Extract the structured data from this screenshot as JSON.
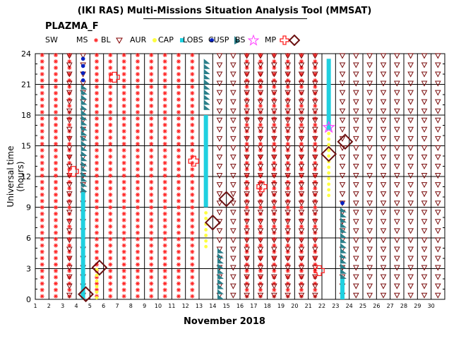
{
  "header": {
    "title": "(IKI RAS) Multi-Missions Situation Analysis Tool (MMSAT)",
    "mission": "PLAZMA_F"
  },
  "legend": [
    {
      "label": "SW",
      "symbol": "none",
      "color": "#000000"
    },
    {
      "label": "MS",
      "symbol": "asterisk",
      "color": "#ff2020"
    },
    {
      "label": "BL",
      "symbol": "tri-down",
      "color": "#800000"
    },
    {
      "label": "AUR",
      "symbol": "dot",
      "color": "#ffff40"
    },
    {
      "label": "CAP",
      "symbol": "square",
      "color": "#20d0e0"
    },
    {
      "label": "LOBS",
      "symbol": "dot",
      "color": "#0020c0"
    },
    {
      "label": "CUSP",
      "symbol": "wedge",
      "color": "#2a7f8a"
    },
    {
      "label": "BS",
      "symbol": "star",
      "color": "#ff40ff"
    },
    {
      "label": "MP",
      "symbol": "cross",
      "color": "#ff2020"
    },
    {
      "label": "",
      "symbol": "diamond",
      "color": "#6b1010"
    }
  ],
  "chart_data": {
    "type": "scatter",
    "title": "(IKI RAS) Multi-Missions Situation Analysis Tool (MMSAT)",
    "subtitle": "PLAZMA_F",
    "xlabel": "November 2018",
    "ylabel": "Universal time (hours)",
    "xlim": [
      1,
      31
    ],
    "ylim": [
      0,
      24
    ],
    "x_ticks": [
      "1",
      "2",
      "3",
      "4",
      "5",
      "6",
      "7",
      "8",
      "9",
      "10",
      "11",
      "12",
      "13",
      "14",
      "15",
      "16",
      "17",
      "18",
      "19",
      "20",
      "21",
      "22",
      "23",
      "24",
      "25",
      "26",
      "27",
      "28",
      "29",
      "30"
    ],
    "y_ticks": [
      "0",
      "3",
      "6",
      "9",
      "12",
      "15",
      "18",
      "21",
      "24"
    ],
    "grid": true,
    "regions": {
      "MS_days": [
        1.5,
        2.5,
        3.5,
        5.5,
        6.5,
        7.5,
        8.5,
        9.5,
        10.5,
        11.5,
        12.5,
        16.5,
        17.5,
        18.5,
        19.5,
        20.5,
        21.5
      ],
      "BL_days": [
        3.5,
        4.5,
        14.5,
        15.5,
        16.5,
        17.5,
        18.5,
        19.5,
        20.5,
        21.5,
        23.5,
        24.5,
        25.5,
        26.5,
        27.5,
        28.5,
        29.5,
        30.5
      ],
      "segments": [
        {
          "region": "CAP",
          "day": 4.5,
          "from": 0.0,
          "to": 10.5
        },
        {
          "region": "LOBS",
          "day": 4.5,
          "from": 21.2,
          "to": 23.6
        },
        {
          "region": "CUSP",
          "day": 4.5,
          "from": 10.5,
          "to": 21.0
        },
        {
          "region": "AUR",
          "day": 5.5,
          "from": 0.0,
          "to": 3.0
        },
        {
          "region": "CUSP",
          "day": 13.5,
          "from": 18.5,
          "to": 23.5
        },
        {
          "region": "CAP",
          "day": 13.5,
          "from": 9.0,
          "to": 18.0
        },
        {
          "region": "AUR",
          "day": 13.5,
          "from": 5.0,
          "to": 9.0
        },
        {
          "region": "CUSP",
          "day": 14.5,
          "from": 0.0,
          "to": 5.0
        },
        {
          "region": "AUR",
          "day": 22.5,
          "from": 10.0,
          "to": 16.5
        },
        {
          "region": "CAP",
          "day": 22.5,
          "from": 16.5,
          "to": 23.5
        },
        {
          "region": "CUSP",
          "day": 23.5,
          "from": 2.0,
          "to": 9.0
        },
        {
          "region": "CAP",
          "day": 23.5,
          "from": 0.0,
          "to": 2.0
        },
        {
          "region": "LOBS",
          "day": 23.5,
          "from": 9.2,
          "to": 10.0
        }
      ],
      "BS_crossings": [
        {
          "day": 22.5,
          "ut": 16.8
        }
      ],
      "MP_crossings": [
        {
          "day": 3.8,
          "ut": 12.5
        },
        {
          "day": 6.8,
          "ut": 21.7
        },
        {
          "day": 12.6,
          "ut": 13.5
        },
        {
          "day": 17.6,
          "ut": 11.0
        },
        {
          "day": 21.8,
          "ut": 2.8
        }
      ],
      "diamonds": [
        {
          "day": 4.7,
          "ut": 0.5
        },
        {
          "day": 5.7,
          "ut": 3.1
        },
        {
          "day": 14.0,
          "ut": 7.5
        },
        {
          "day": 15.0,
          "ut": 9.8
        },
        {
          "day": 22.5,
          "ut": 14.2
        },
        {
          "day": 23.7,
          "ut": 15.4
        }
      ]
    }
  },
  "colors": {
    "ms": "#ff2020",
    "bl": "#7a0d0d",
    "aur": "#ffff40",
    "cap": "#20d0e0",
    "lobs": "#0020c0",
    "cusp": "#2a7f8a",
    "bs": "#ff40ff",
    "mp": "#ff2020",
    "diamond": "#6b1010"
  }
}
